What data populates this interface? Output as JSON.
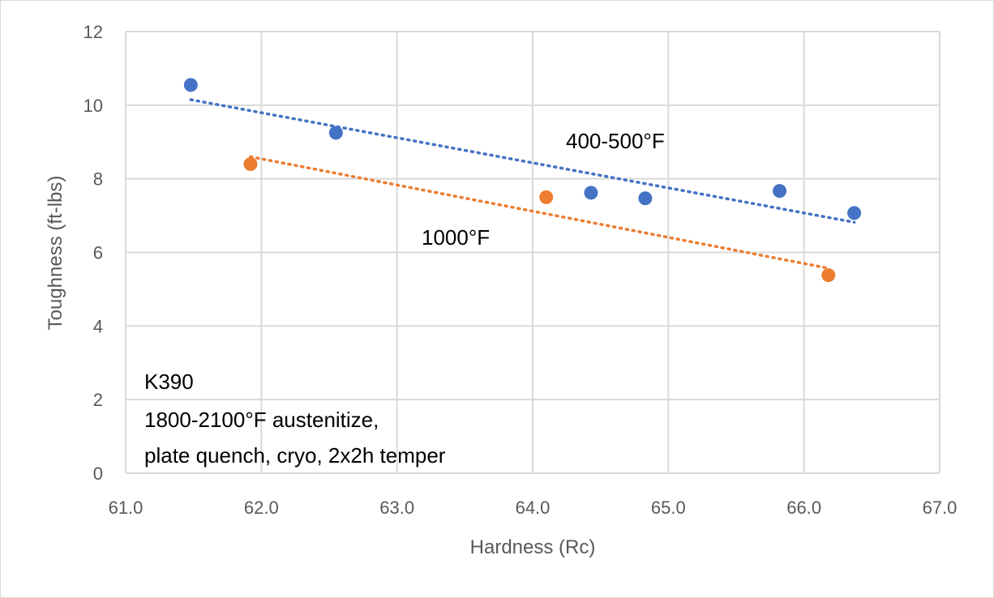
{
  "chart_data": {
    "type": "scatter",
    "xlabel": "Hardness (Rc)",
    "ylabel": "Toughness (ft-lbs)",
    "xlim": [
      61.0,
      67.0
    ],
    "ylim": [
      0,
      12
    ],
    "x_ticks": [
      61.0,
      62.0,
      63.0,
      64.0,
      65.0,
      66.0,
      67.0
    ],
    "y_ticks": [
      0,
      2,
      4,
      6,
      8,
      10,
      12
    ],
    "x_tick_labels": [
      "61.0",
      "62.0",
      "63.0",
      "64.0",
      "65.0",
      "66.0",
      "67.0"
    ],
    "y_tick_labels": [
      "0",
      "2",
      "4",
      "6",
      "8",
      "10",
      "12"
    ],
    "grid": true,
    "series": [
      {
        "name": "400-500°F",
        "color": "#4472c4",
        "x": [
          61.48,
          62.55,
          64.43,
          64.83,
          65.82,
          66.37
        ],
        "y": [
          10.55,
          9.25,
          7.62,
          7.47,
          7.67,
          7.07
        ],
        "trendline": {
          "type": "linear",
          "x": [
            61.48,
            66.37
          ],
          "y": [
            10.15,
            6.82
          ]
        },
        "label_position": "upper-right"
      },
      {
        "name": "1000°F",
        "color": "#ed7d31",
        "x": [
          61.92,
          64.1,
          66.18
        ],
        "y": [
          8.4,
          7.5,
          5.38
        ],
        "trendline": {
          "type": "linear",
          "x": [
            61.92,
            66.18
          ],
          "y": [
            8.6,
            5.57
          ]
        },
        "label_position": "middle"
      }
    ],
    "annotations": [
      "K390",
      "1800-2100°F austenitize,",
      "plate quench, cryo, 2x2h temper"
    ]
  }
}
